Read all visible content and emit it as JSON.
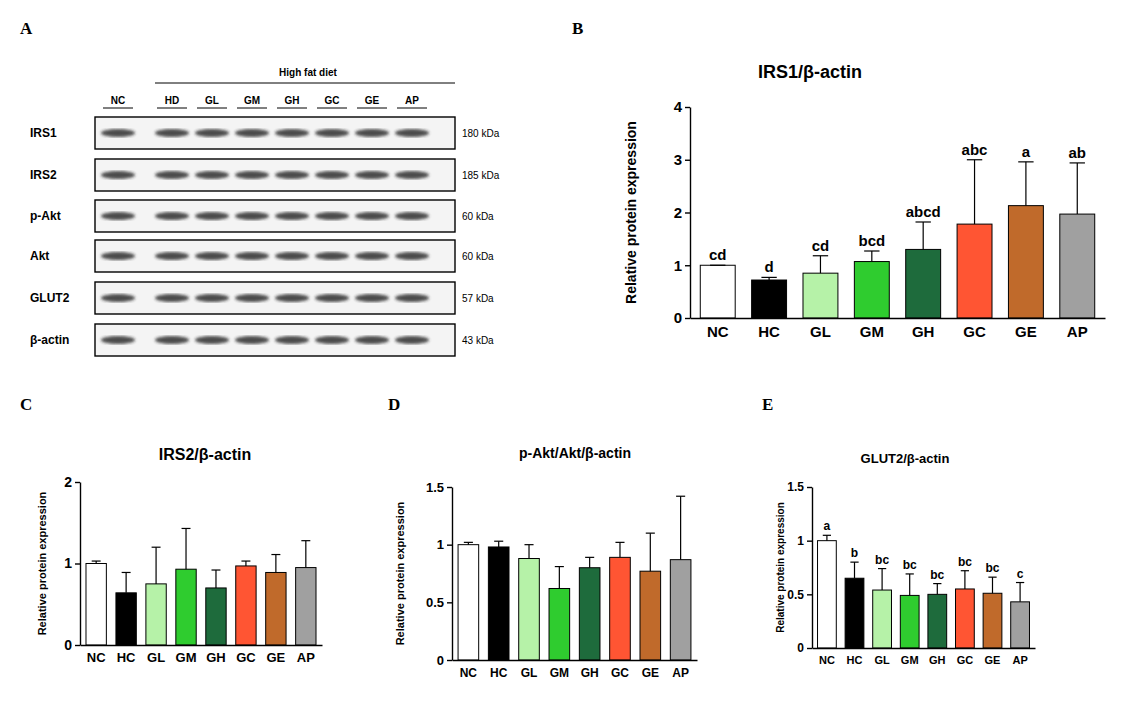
{
  "panel_labels": [
    "A",
    "B",
    "C",
    "D",
    "E"
  ],
  "blot": {
    "group_label": "High fat diet",
    "lanes": [
      "NC",
      "HD",
      "GL",
      "GM",
      "GH",
      "GC",
      "GE",
      "AP"
    ],
    "rows": [
      {
        "protein": "IRS1",
        "size": "180 kDa"
      },
      {
        "protein": "IRS2",
        "size": "185 kDa"
      },
      {
        "protein": "p-Akt",
        "size": "60 kDa"
      },
      {
        "protein": "Akt",
        "size": "60 kDa"
      },
      {
        "protein": "GLUT2",
        "size": "57 kDa"
      },
      {
        "protein": "β-actin",
        "size": "43 kDa"
      }
    ]
  },
  "chart_data": [
    {
      "type": "bar",
      "title": "IRS1/β-actin",
      "y_label": "Relative protein expression",
      "categories": [
        "NC",
        "HC",
        "GL",
        "GM",
        "GH",
        "GC",
        "GE",
        "AP"
      ],
      "values": [
        1.0,
        0.72,
        0.85,
        1.07,
        1.3,
        1.78,
        2.13,
        1.97
      ],
      "errors": [
        0.0,
        0.05,
        0.33,
        0.2,
        0.52,
        1.22,
        0.83,
        0.97
      ],
      "annotations": [
        "cd",
        "d",
        "cd",
        "bcd",
        "abcd",
        "abc",
        "a",
        "ab"
      ],
      "colors": [
        "#ffffff",
        "#000000",
        "#b6f2a8",
        "#2fcc2f",
        "#1e6b3c",
        "#ff5533",
        "#c06a2b",
        "#a0a0a0"
      ],
      "ylim": [
        0,
        4
      ],
      "yticks": [
        0,
        1,
        2,
        3,
        4
      ]
    },
    {
      "type": "bar",
      "title": "IRS2/β-actin",
      "y_label": "Relative protein expression",
      "categories": [
        "NC",
        "HC",
        "GL",
        "GM",
        "GH",
        "GC",
        "GE",
        "AP"
      ],
      "values": [
        1.0,
        0.64,
        0.75,
        0.93,
        0.7,
        0.97,
        0.89,
        0.95
      ],
      "errors": [
        0.03,
        0.25,
        0.45,
        0.5,
        0.22,
        0.06,
        0.22,
        0.33
      ],
      "colors": [
        "#ffffff",
        "#000000",
        "#b6f2a8",
        "#2fcc2f",
        "#1e6b3c",
        "#ff5533",
        "#c06a2b",
        "#a0a0a0"
      ],
      "ylim": [
        0,
        2
      ],
      "yticks": [
        0,
        1,
        2
      ]
    },
    {
      "type": "bar",
      "title": "p-Akt/Akt/β-actin",
      "y_label": "Relative protein expression",
      "categories": [
        "NC",
        "HC",
        "GL",
        "GM",
        "GH",
        "GC",
        "GE",
        "AP"
      ],
      "values": [
        1.0,
        0.98,
        0.88,
        0.62,
        0.8,
        0.89,
        0.77,
        0.87
      ],
      "errors": [
        0.02,
        0.05,
        0.12,
        0.19,
        0.09,
        0.13,
        0.33,
        0.55
      ],
      "colors": [
        "#ffffff",
        "#000000",
        "#b6f2a8",
        "#2fcc2f",
        "#1e6b3c",
        "#ff5533",
        "#c06a2b",
        "#a0a0a0"
      ],
      "ylim": [
        0,
        1.5
      ],
      "yticks": [
        0,
        0.5,
        1,
        1.5
      ]
    },
    {
      "type": "bar",
      "title": "GLUT2/β-actin",
      "y_label": "Relative protein expression",
      "categories": [
        "NC",
        "HC",
        "GL",
        "GM",
        "GH",
        "GC",
        "GE",
        "AP"
      ],
      "values": [
        1.0,
        0.65,
        0.54,
        0.49,
        0.5,
        0.55,
        0.51,
        0.43
      ],
      "errors": [
        0.05,
        0.15,
        0.2,
        0.2,
        0.1,
        0.17,
        0.15,
        0.18
      ],
      "annotations": [
        "a",
        "b",
        "bc",
        "bc",
        "bc",
        "bc",
        "bc",
        "c"
      ],
      "colors": [
        "#ffffff",
        "#000000",
        "#b6f2a8",
        "#2fcc2f",
        "#1e6b3c",
        "#ff5533",
        "#c06a2b",
        "#a0a0a0"
      ],
      "ylim": [
        0,
        1.5
      ],
      "yticks": [
        0,
        0.5,
        1,
        1.5
      ]
    }
  ]
}
